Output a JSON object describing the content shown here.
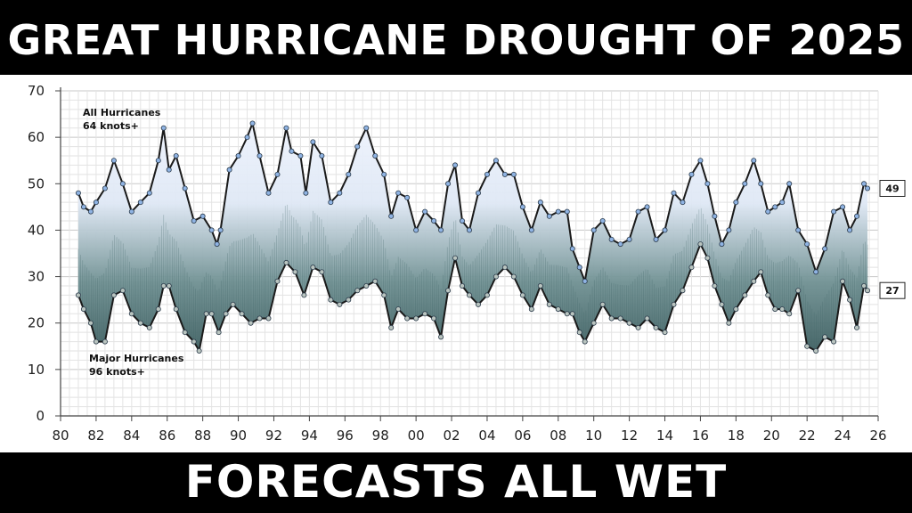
{
  "header": {
    "title": "GREAT HURRICANE DROUGHT OF 2025"
  },
  "footer": {
    "caption": "FORECASTS ALL WET"
  },
  "chart_data": {
    "type": "line",
    "xlabel": "",
    "ylabel": "",
    "ylim": [
      0,
      70
    ],
    "xlim": [
      1980,
      2026
    ],
    "yticks": [
      "0",
      "10",
      "20",
      "30",
      "40",
      "50",
      "60",
      "70"
    ],
    "xticks": [
      "80",
      "82",
      "84",
      "86",
      "88",
      "90",
      "92",
      "94",
      "96",
      "98",
      "00",
      "02",
      "04",
      "06",
      "08",
      "10",
      "12",
      "14",
      "16",
      "18",
      "20",
      "22",
      "24",
      "26"
    ],
    "grid": true,
    "annotations": {
      "all": [
        "All Hurricanes",
        "64 knots+"
      ],
      "major": [
        "Major Hurricanes",
        "96 knots+"
      ]
    },
    "end_labels": {
      "all": "49",
      "major": "27"
    },
    "series": [
      {
        "key": "all",
        "color": "#1a1a1a",
        "marker_color": "#8fb3e3",
        "points": [
          [
            1981.0,
            48
          ],
          [
            1981.3,
            45
          ],
          [
            1981.7,
            44
          ],
          [
            1982.0,
            46
          ],
          [
            1982.5,
            49
          ],
          [
            1983.0,
            55
          ],
          [
            1983.5,
            50
          ],
          [
            1984.0,
            44
          ],
          [
            1984.5,
            46
          ],
          [
            1985.0,
            48
          ],
          [
            1985.5,
            55
          ],
          [
            1985.8,
            62
          ],
          [
            1986.1,
            53
          ],
          [
            1986.5,
            56
          ],
          [
            1987.0,
            49
          ],
          [
            1987.5,
            42
          ],
          [
            1988.0,
            43
          ],
          [
            1988.5,
            40
          ],
          [
            1988.8,
            37
          ],
          [
            1989.0,
            40
          ],
          [
            1989.5,
            53
          ],
          [
            1990.0,
            56
          ],
          [
            1990.5,
            60
          ],
          [
            1990.8,
            63
          ],
          [
            1991.2,
            56
          ],
          [
            1991.7,
            48
          ],
          [
            1992.2,
            52
          ],
          [
            1992.7,
            62
          ],
          [
            1993.0,
            57
          ],
          [
            1993.5,
            56
          ],
          [
            1993.8,
            48
          ],
          [
            1994.2,
            59
          ],
          [
            1994.7,
            56
          ],
          [
            1995.2,
            46
          ],
          [
            1995.7,
            48
          ],
          [
            1996.2,
            52
          ],
          [
            1996.7,
            58
          ],
          [
            1997.2,
            62
          ],
          [
            1997.7,
            56
          ],
          [
            1998.2,
            52
          ],
          [
            1998.6,
            43
          ],
          [
            1999.0,
            48
          ],
          [
            1999.5,
            47
          ],
          [
            2000.0,
            40
          ],
          [
            2000.5,
            44
          ],
          [
            2001.0,
            42
          ],
          [
            2001.4,
            40
          ],
          [
            2001.8,
            50
          ],
          [
            2002.2,
            54
          ],
          [
            2002.6,
            42
          ],
          [
            2003.0,
            40
          ],
          [
            2003.5,
            48
          ],
          [
            2004.0,
            52
          ],
          [
            2004.5,
            55
          ],
          [
            2005.0,
            52
          ],
          [
            2005.5,
            52
          ],
          [
            2006.0,
            45
          ],
          [
            2006.5,
            40
          ],
          [
            2007.0,
            46
          ],
          [
            2007.5,
            43
          ],
          [
            2008.0,
            44
          ],
          [
            2008.5,
            44
          ],
          [
            2008.8,
            36
          ],
          [
            2009.2,
            32
          ],
          [
            2009.5,
            29
          ],
          [
            2010.0,
            40
          ],
          [
            2010.5,
            42
          ],
          [
            2011.0,
            38
          ],
          [
            2011.5,
            37
          ],
          [
            2012.0,
            38
          ],
          [
            2012.5,
            44
          ],
          [
            2013.0,
            45
          ],
          [
            2013.5,
            38
          ],
          [
            2014.0,
            40
          ],
          [
            2014.5,
            48
          ],
          [
            2015.0,
            46
          ],
          [
            2015.5,
            52
          ],
          [
            2016.0,
            55
          ],
          [
            2016.4,
            50
          ],
          [
            2016.8,
            43
          ],
          [
            2017.2,
            37
          ],
          [
            2017.6,
            40
          ],
          [
            2018.0,
            46
          ],
          [
            2018.5,
            50
          ],
          [
            2019.0,
            55
          ],
          [
            2019.4,
            50
          ],
          [
            2019.8,
            44
          ],
          [
            2020.2,
            45
          ],
          [
            2020.6,
            46
          ],
          [
            2021.0,
            50
          ],
          [
            2021.5,
            40
          ],
          [
            2022.0,
            37
          ],
          [
            2022.5,
            31
          ],
          [
            2023.0,
            36
          ],
          [
            2023.5,
            44
          ],
          [
            2024.0,
            45
          ],
          [
            2024.4,
            40
          ],
          [
            2024.8,
            43
          ],
          [
            2025.2,
            50
          ],
          [
            2025.4,
            49
          ]
        ]
      },
      {
        "key": "major",
        "color": "#1a1a1a",
        "marker_color": "#b9c4bf",
        "points": [
          [
            1981.0,
            26
          ],
          [
            1981.3,
            23
          ],
          [
            1981.7,
            20
          ],
          [
            1982.0,
            16
          ],
          [
            1982.5,
            16
          ],
          [
            1983.0,
            26
          ],
          [
            1983.5,
            27
          ],
          [
            1984.0,
            22
          ],
          [
            1984.5,
            20
          ],
          [
            1985.0,
            19
          ],
          [
            1985.5,
            23
          ],
          [
            1985.8,
            28
          ],
          [
            1986.1,
            28
          ],
          [
            1986.5,
            23
          ],
          [
            1987.0,
            18
          ],
          [
            1987.5,
            16
          ],
          [
            1987.8,
            14
          ],
          [
            1988.2,
            22
          ],
          [
            1988.5,
            22
          ],
          [
            1988.9,
            18
          ],
          [
            1989.3,
            22
          ],
          [
            1989.7,
            24
          ],
          [
            1990.2,
            22
          ],
          [
            1990.7,
            20
          ],
          [
            1991.2,
            21
          ],
          [
            1991.7,
            21
          ],
          [
            1992.2,
            29
          ],
          [
            1992.7,
            33
          ],
          [
            1993.2,
            31
          ],
          [
            1993.7,
            26
          ],
          [
            1994.2,
            32
          ],
          [
            1994.7,
            31
          ],
          [
            1995.2,
            25
          ],
          [
            1995.7,
            24
          ],
          [
            1996.2,
            25
          ],
          [
            1996.7,
            27
          ],
          [
            1997.2,
            28
          ],
          [
            1997.7,
            29
          ],
          [
            1998.2,
            26
          ],
          [
            1998.6,
            19
          ],
          [
            1999.0,
            23
          ],
          [
            1999.5,
            21
          ],
          [
            2000.0,
            21
          ],
          [
            2000.5,
            22
          ],
          [
            2001.0,
            21
          ],
          [
            2001.4,
            17
          ],
          [
            2001.8,
            27
          ],
          [
            2002.2,
            34
          ],
          [
            2002.6,
            28
          ],
          [
            2003.0,
            26
          ],
          [
            2003.5,
            24
          ],
          [
            2004.0,
            26
          ],
          [
            2004.5,
            30
          ],
          [
            2005.0,
            32
          ],
          [
            2005.5,
            30
          ],
          [
            2006.0,
            26
          ],
          [
            2006.5,
            23
          ],
          [
            2007.0,
            28
          ],
          [
            2007.5,
            24
          ],
          [
            2008.0,
            23
          ],
          [
            2008.5,
            22
          ],
          [
            2008.8,
            22
          ],
          [
            2009.2,
            18
          ],
          [
            2009.5,
            16
          ],
          [
            2010.0,
            20
          ],
          [
            2010.5,
            24
          ],
          [
            2011.0,
            21
          ],
          [
            2011.5,
            21
          ],
          [
            2012.0,
            20
          ],
          [
            2012.5,
            19
          ],
          [
            2013.0,
            21
          ],
          [
            2013.5,
            19
          ],
          [
            2014.0,
            18
          ],
          [
            2014.5,
            24
          ],
          [
            2015.0,
            27
          ],
          [
            2015.5,
            32
          ],
          [
            2016.0,
            37
          ],
          [
            2016.4,
            34
          ],
          [
            2016.8,
            28
          ],
          [
            2017.2,
            24
          ],
          [
            2017.6,
            20
          ],
          [
            2018.0,
            23
          ],
          [
            2018.5,
            26
          ],
          [
            2019.0,
            29
          ],
          [
            2019.4,
            31
          ],
          [
            2019.8,
            26
          ],
          [
            2020.2,
            23
          ],
          [
            2020.6,
            23
          ],
          [
            2021.0,
            22
          ],
          [
            2021.5,
            27
          ],
          [
            2022.0,
            15
          ],
          [
            2022.5,
            14
          ],
          [
            2023.0,
            17
          ],
          [
            2023.5,
            16
          ],
          [
            2024.0,
            29
          ],
          [
            2024.4,
            25
          ],
          [
            2024.8,
            19
          ],
          [
            2025.2,
            28
          ],
          [
            2025.4,
            27
          ]
        ]
      }
    ]
  }
}
